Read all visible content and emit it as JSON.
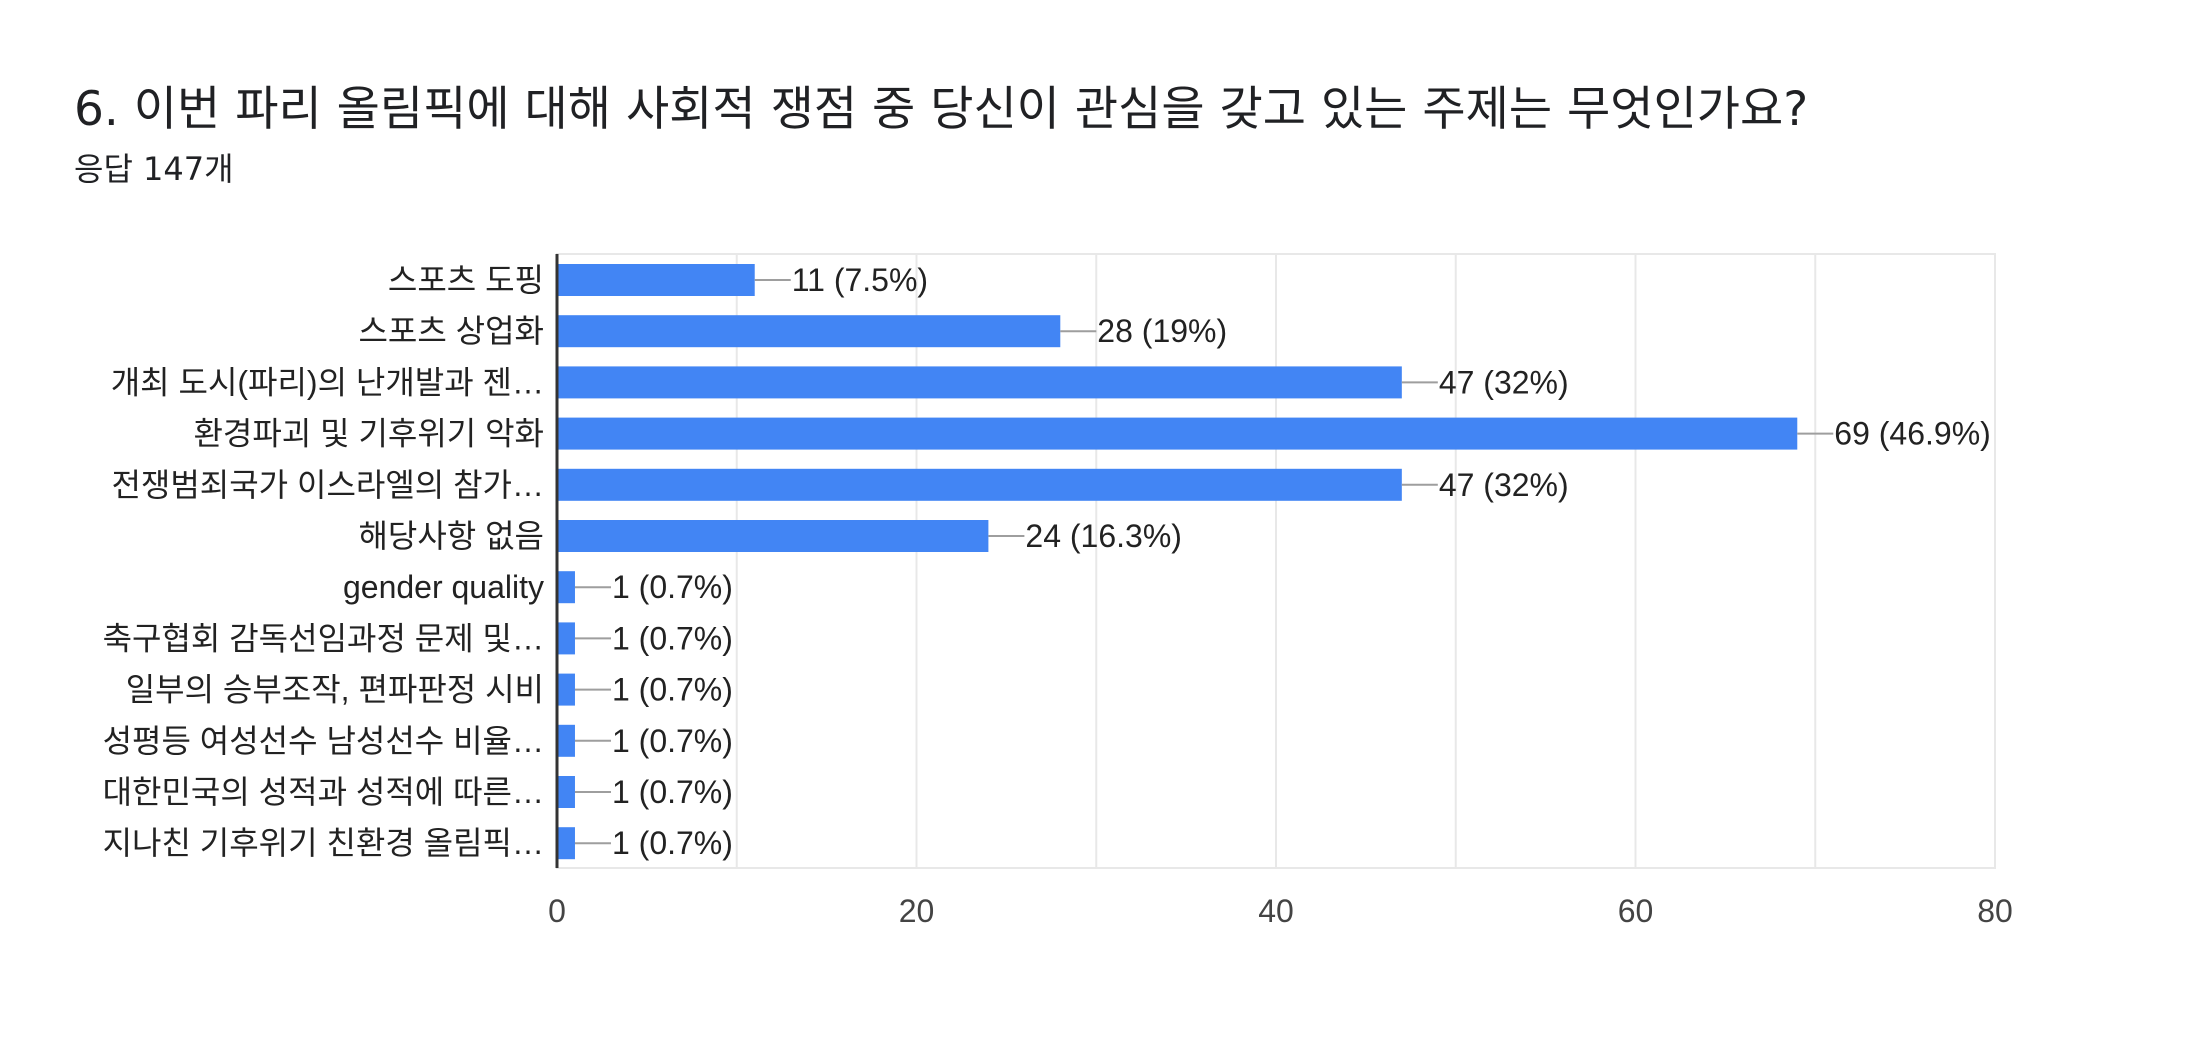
{
  "question": {
    "title": "6. 이번 파리 올림픽에 대해 사회적 쟁점 중 당신이 관심을 갖고 있는 주제는 무엇인가요?",
    "response_count": "응답 147개"
  },
  "colors": {
    "bar": "#4285f4",
    "grid": "#e8e8e8",
    "axis": "#333333",
    "leader": "#9e9e9e",
    "text": "#222222",
    "tick": "#444444"
  },
  "chart_data": {
    "type": "bar",
    "orientation": "horizontal",
    "categories": [
      "스포츠 도핑",
      "스포츠 상업화",
      "개최 도시(파리)의 난개발과 젠…",
      "환경파괴 및 기후위기 악화",
      "전쟁범죄국가 이스라엘의 참가…",
      "해당사항 없음",
      "gender quality",
      "축구협회 감독선임과정 문제 및…",
      "일부의 승부조작, 편파판정 시비",
      "성평등 여성선수 남성선수 비율…",
      "대한민국의 성적과 성적에 따른…",
      "지나친 기후위기 친환경 올림픽…"
    ],
    "values": [
      11,
      28,
      47,
      69,
      47,
      24,
      1,
      1,
      1,
      1,
      1,
      1
    ],
    "data_labels": [
      "11 (7.5%)",
      "28 (19%)",
      "47 (32%)",
      "69 (46.9%)",
      "47 (32%)",
      "24 (16.3%)",
      "1 (0.7%)",
      "1 (0.7%)",
      "1 (0.7%)",
      "1 (0.7%)",
      "1 (0.7%)",
      "1 (0.7%)"
    ],
    "xlim": [
      0,
      80
    ],
    "x_ticks": [
      "0",
      "20",
      "40",
      "60",
      "80"
    ],
    "grid": true
  }
}
